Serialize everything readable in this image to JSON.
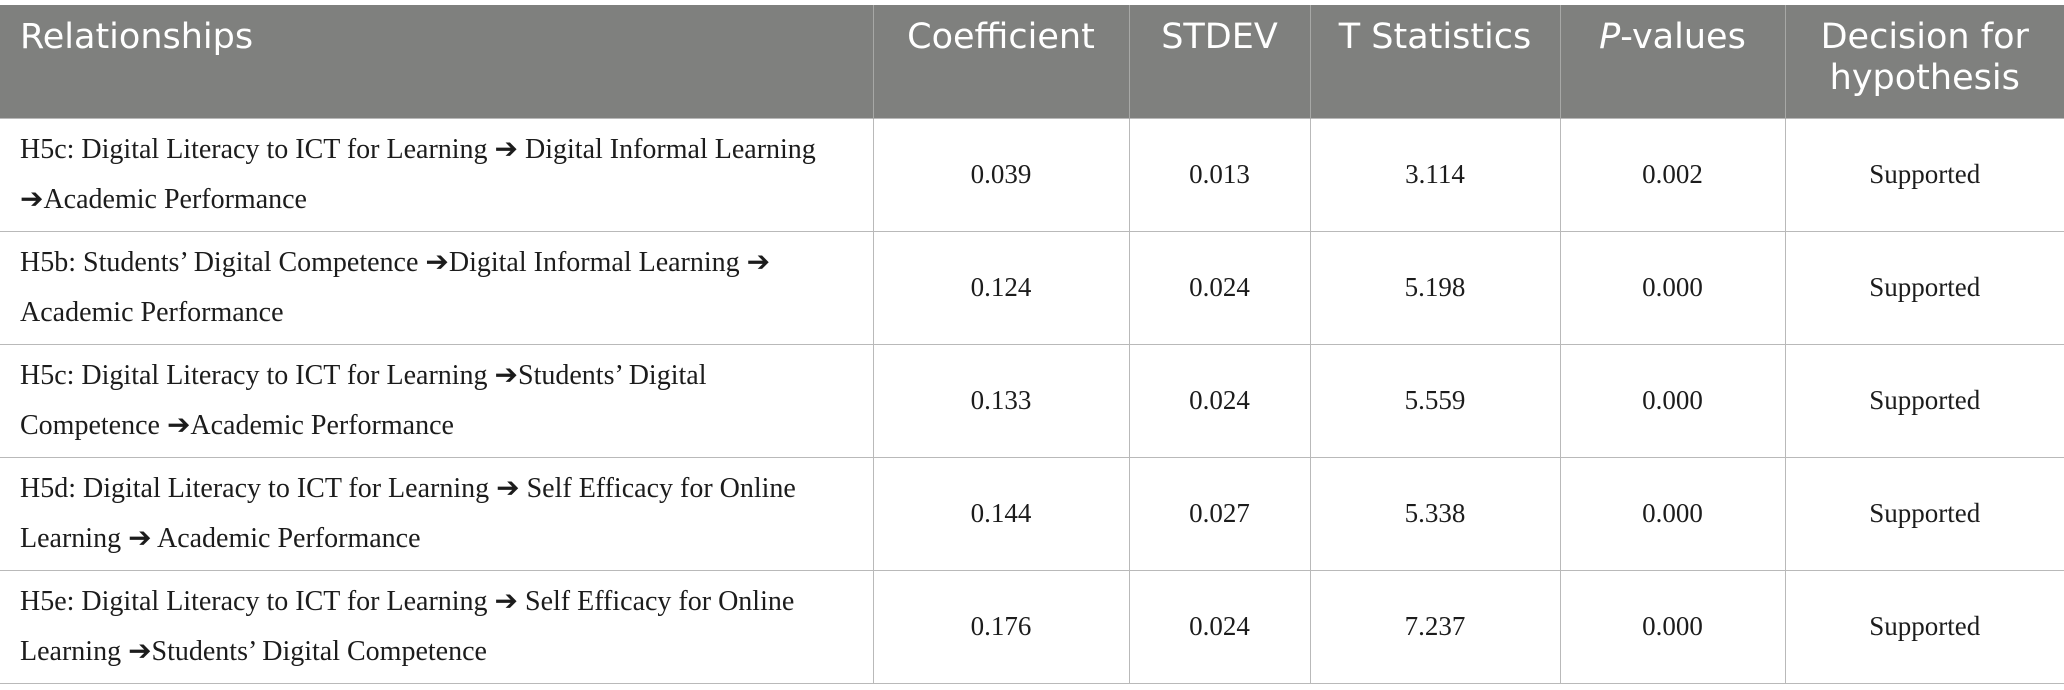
{
  "table": {
    "headers": {
      "relationships": "Relationships",
      "coefficient": "Coefficient",
      "stdev": "STDEV",
      "t_statistics": "T Statistics",
      "p_values_italic": "P",
      "p_values_rest": "-values",
      "decision": "Decision for hypothesis"
    },
    "rows": [
      {
        "relationship": "H5c: Digital Literacy to ICT for Learning ➔ Digital Informal Learning ➔Academic Performance",
        "coefficient": "0.039",
        "stdev": "0.013",
        "t_statistics": "3.114",
        "p_value": "0.002",
        "decision": "Supported"
      },
      {
        "relationship": "H5b: Students’ Digital Competence ➔Digital Informal Learning ➔ Academic Performance",
        "coefficient": "0.124",
        "stdev": "0.024",
        "t_statistics": "5.198",
        "p_value": "0.000",
        "decision": "Supported"
      },
      {
        "relationship": "H5c: Digital Literacy to ICT for Learning ➔Students’ Digital Competence ➔Academic Performance",
        "coefficient": "0.133",
        "stdev": "0.024",
        "t_statistics": "5.559",
        "p_value": "0.000",
        "decision": "Supported"
      },
      {
        "relationship": "H5d: Digital Literacy to ICT for Learning ➔ Self Efficacy for Online Learning ➔ Academic Performance",
        "coefficient": "0.144",
        "stdev": "0.027",
        "t_statistics": "5.338",
        "p_value": "0.000",
        "decision": "Supported"
      },
      {
        "relationship": "H5e: Digital Literacy to ICT for Learning ➔ Self Efficacy for Online Learning ➔Students’ Digital Competence",
        "coefficient": "0.176",
        "stdev": "0.024",
        "t_statistics": "7.237",
        "p_value": "0.000",
        "decision": "Supported"
      }
    ]
  }
}
